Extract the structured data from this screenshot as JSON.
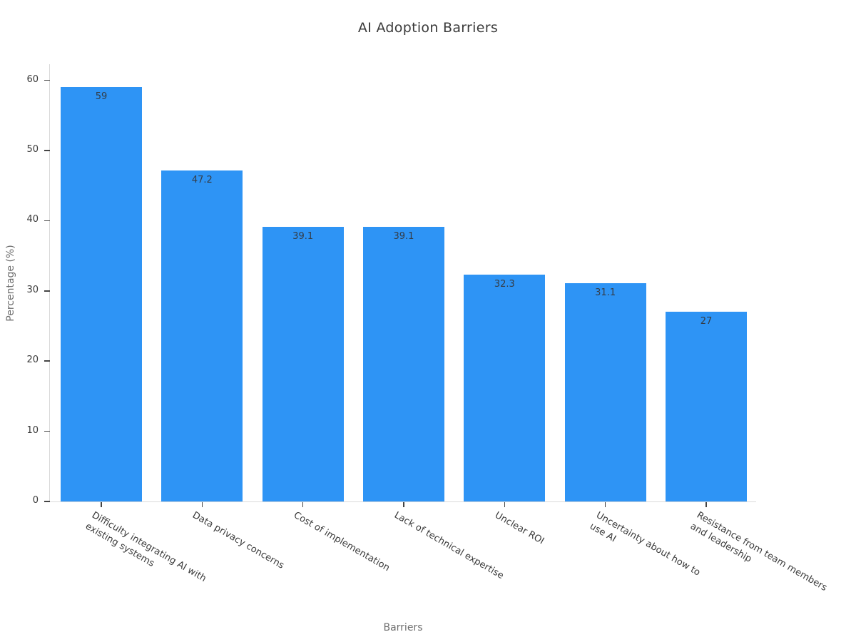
{
  "chart_data": {
    "type": "bar",
    "title": "AI Adoption Barriers",
    "xlabel": "Barriers",
    "ylabel": "Percentage (%)",
    "categories": [
      "Difficulty integrating AI with\nexisting systems",
      "Data privacy concerns",
      "Cost of implementation",
      "Lack of technical expertise",
      "Unclear ROI",
      "Uncertainty about how to\nuse AI",
      "Resistance from team members\nand leadership"
    ],
    "values": [
      59,
      47.2,
      39.1,
      39.1,
      32.3,
      31.1,
      27
    ],
    "bar_labels": [
      "59",
      "47.2",
      "39.1",
      "39.1",
      "32.3",
      "31.1",
      "27"
    ],
    "yticks": [
      0,
      10,
      20,
      30,
      40,
      50,
      60
    ],
    "ylim": [
      0,
      62.3
    ],
    "grid": false,
    "legend": null,
    "colors": {
      "bar": "#2E94F5",
      "bar_label": "#343C46",
      "tick_label": "#3A3A3A",
      "axis_label": "#6E6E6E",
      "title": "#3A3A3A",
      "spine": "#D9D9D9",
      "tick_mark": "#444444"
    }
  }
}
